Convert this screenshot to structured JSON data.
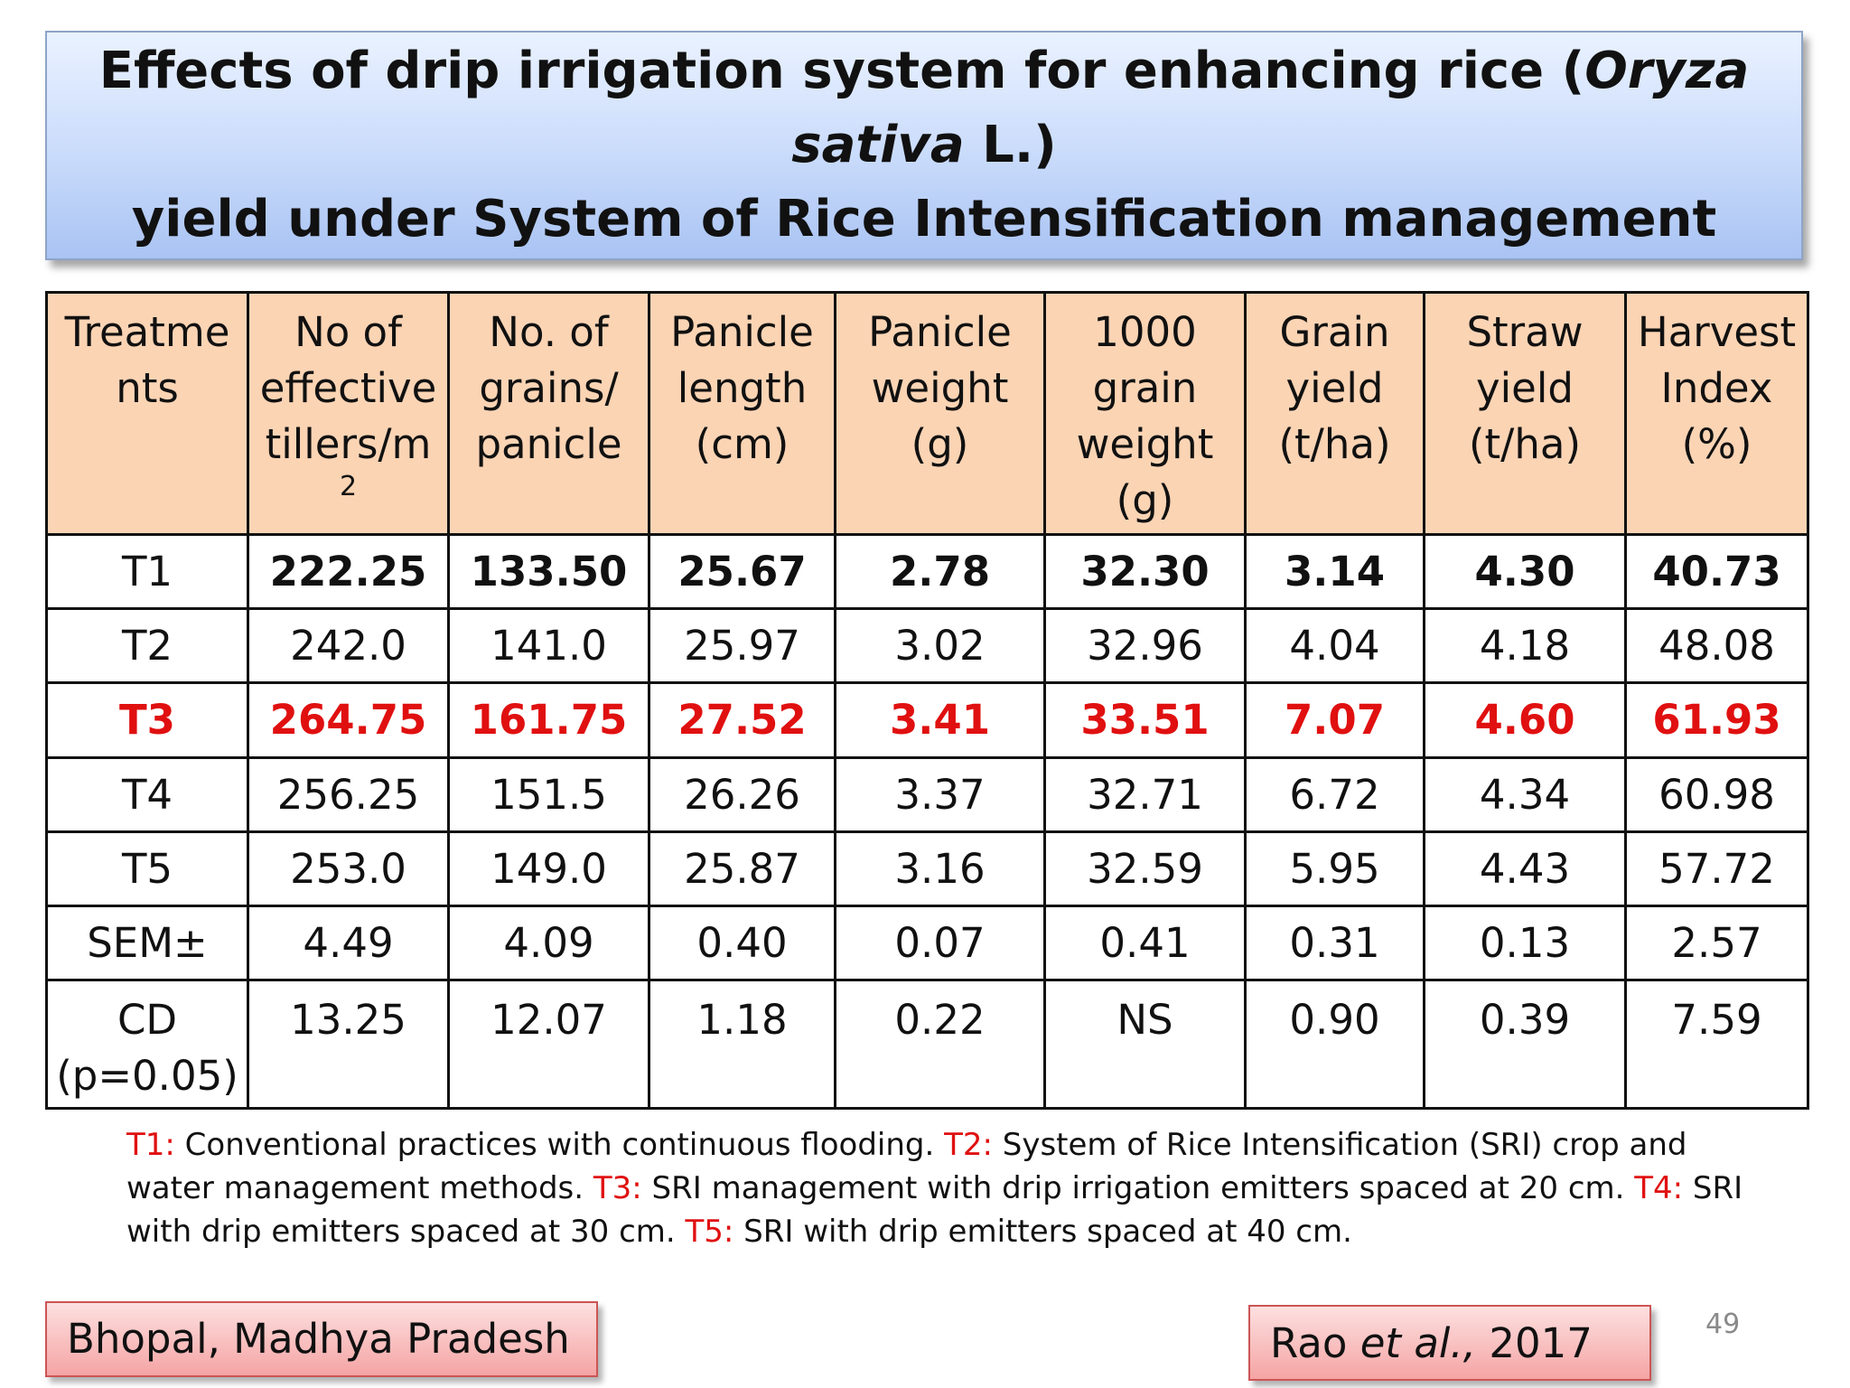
{
  "title": {
    "line1_pre": "Effects of drip irrigation system for enhancing rice (",
    "line1_italic": "Oryza sativa",
    "line1_post": " L.)",
    "line2": "yield under System of Rice Intensification management"
  },
  "table": {
    "headers": [
      {
        "text": "Treatme nts",
        "sup": ""
      },
      {
        "text": "No of effective tillers/m",
        "sup": "2"
      },
      {
        "text": "No. of grains/ panicle",
        "sup": ""
      },
      {
        "text": "Panicle length (cm)",
        "sup": ""
      },
      {
        "text": "Panicle weight (g)",
        "sup": ""
      },
      {
        "text": "1000 grain weight (g)",
        "sup": ""
      },
      {
        "text": "Grain yield (t/ha)",
        "sup": ""
      },
      {
        "text": "Straw yield (t/ha)",
        "sup": ""
      },
      {
        "text": "Harvest Index (%)",
        "sup": ""
      }
    ],
    "rows": [
      {
        "label": "T1",
        "values": [
          "222.25",
          "133.50",
          "25.67",
          "2.78",
          "32.30",
          "3.14",
          "4.30",
          "40.73"
        ]
      },
      {
        "label": "T2",
        "values": [
          "242.0",
          "141.0",
          "25.97",
          "3.02",
          "32.96",
          "4.04",
          "4.18",
          "48.08"
        ]
      },
      {
        "label": "T3",
        "values": [
          "264.75",
          "161.75",
          "27.52",
          "3.41",
          "33.51",
          "7.07",
          "4.60",
          "61.93"
        ]
      },
      {
        "label": "T4",
        "values": [
          "256.25",
          "151.5",
          "26.26",
          "3.37",
          "32.71",
          "6.72",
          "4.34",
          "60.98"
        ]
      },
      {
        "label": "T5",
        "values": [
          "253.0",
          "149.0",
          "25.87",
          "3.16",
          "32.59",
          "5.95",
          "4.43",
          "57.72"
        ]
      },
      {
        "label": "SEM±",
        "values": [
          "4.49",
          "4.09",
          "0.40",
          "0.07",
          "0.41",
          "0.31",
          "0.13",
          "2.57"
        ]
      },
      {
        "label": "CD (p=0.05)",
        "values": [
          "13.25",
          "12.07",
          "1.18",
          "0.22",
          "NS",
          "0.90",
          "0.39",
          "7.59"
        ]
      }
    ]
  },
  "footnote": [
    {
      "key": "T1:",
      "text": " Conventional practices with continuous flooding.  "
    },
    {
      "key": "T2:",
      "text": " System of Rice Intensification (SRI) crop and water management methods. "
    },
    {
      "key": "T3:",
      "text": " SRI management with drip irrigation emitters spaced at 20 cm.  "
    },
    {
      "key": "T4:",
      "text": " SRI with drip emitters spaced at 30 cm.  "
    },
    {
      "key": "T5:",
      "text": " SRI with drip emitters spaced at 40 cm."
    }
  ],
  "location": "Bhopal, Madhya Pradesh",
  "citation": {
    "author": "Rao ",
    "etal": "et al.,",
    "year": " 2017"
  },
  "page_number": "49",
  "colors": {
    "highlight": "#e01010",
    "header_bg": "#fbd4b4",
    "title_bg": "#c9dbfb"
  }
}
